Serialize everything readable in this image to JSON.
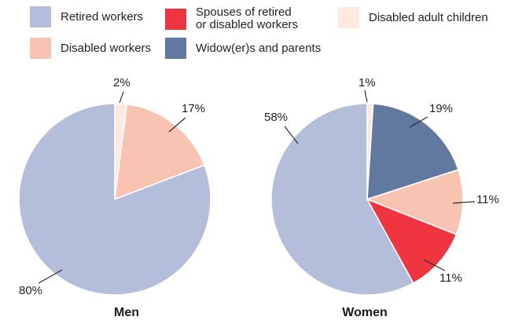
{
  "figure": {
    "background": "#ffffff",
    "text_color": "#231f20",
    "line_color": "#2a2a2a"
  },
  "colors": {
    "retired_workers": "#b4bdd9",
    "disabled_workers": "#f9c3b1",
    "spouses": "#ee3540",
    "widowers_parents": "#62799f",
    "disabled_adult_children": "#fde9e0"
  },
  "legend": {
    "items": [
      {
        "label": "Retired workers",
        "color": "#b4bdd9"
      },
      {
        "label": "Disabled workers",
        "color": "#f9c3b1"
      },
      {
        "label": "Spouses of retired\nor disabled workers",
        "color": "#ee3540"
      },
      {
        "label": "Widow(er)s and parents",
        "color": "#62799f"
      },
      {
        "label": "Disabled adult children",
        "color": "#fde9e0"
      }
    ]
  },
  "chart_data": [
    {
      "type": "pie",
      "title": "Men",
      "start_angle_deg": 0,
      "direction": "clockwise",
      "slices": [
        {
          "label": "Disabled adult children",
          "value": 2,
          "display": "2%",
          "color": "#fde9e0"
        },
        {
          "label": "Disabled workers",
          "value": 17,
          "display": "17%",
          "color": "#f9c3b1"
        },
        {
          "label": "Retired workers",
          "value": 80,
          "display": "80%",
          "color": "#b4bdd9"
        }
      ]
    },
    {
      "type": "pie",
      "title": "Women",
      "start_angle_deg": 0,
      "direction": "clockwise",
      "slices": [
        {
          "label": "Disabled adult children",
          "value": 1,
          "display": "1%",
          "color": "#fde9e0"
        },
        {
          "label": "Widow(er)s and parents",
          "value": 19,
          "display": "19%",
          "color": "#62799f"
        },
        {
          "label": "Disabled workers",
          "value": 11,
          "display": "11%",
          "color": "#f9c3b1"
        },
        {
          "label": "Spouses of retired or disabled workers",
          "value": 11,
          "display": "11%",
          "color": "#ee3540"
        },
        {
          "label": "Retired workers",
          "value": 58,
          "display": "58%",
          "color": "#b4bdd9"
        }
      ]
    }
  ]
}
